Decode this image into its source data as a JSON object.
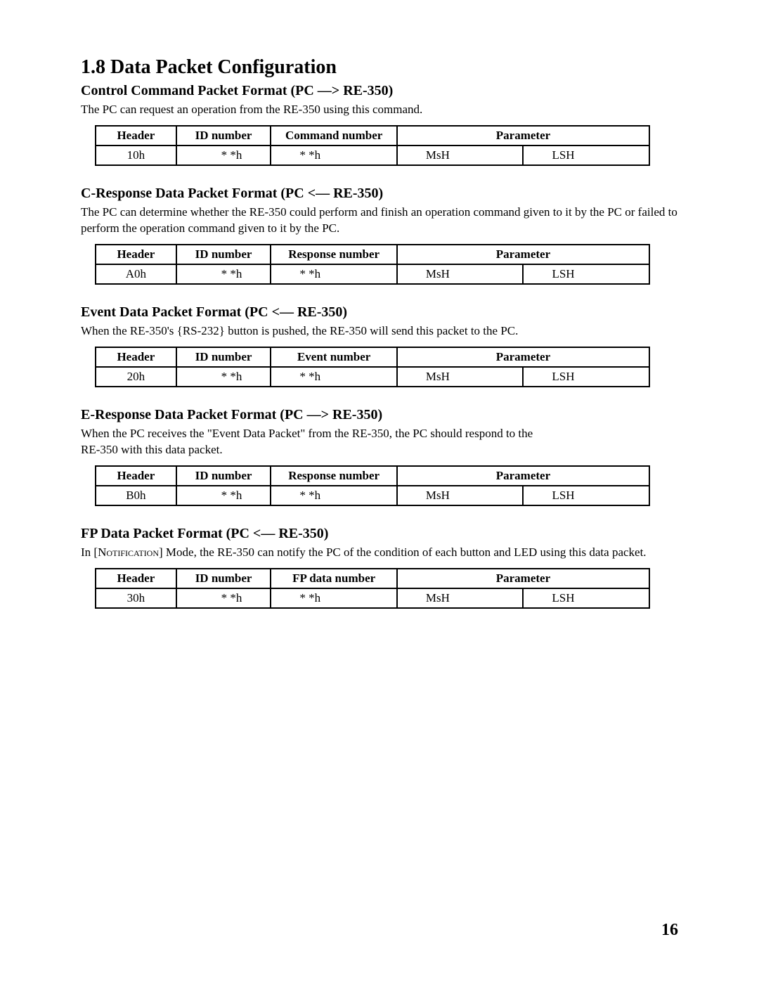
{
  "page": {
    "title": "1.8 Data Packet Configuration",
    "page_number": "16"
  },
  "sections": [
    {
      "title": "Control Command Packet Format (PC —> RE-350)",
      "desc": "The PC can request an operation from the RE-350 using this command.",
      "table": {
        "headers": [
          "Header",
          "ID number",
          "Command number",
          "Parameter"
        ],
        "row": {
          "header_val": "10h",
          "id_val": "* *h",
          "num_val": "* *h",
          "msh": "MsH",
          "lsh": "LSH"
        }
      }
    },
    {
      "title": "C-Response Data Packet Format (PC <— RE-350)",
      "desc": "The PC can determine whether the RE-350 could perform and finish an operation command given to it by the PC or failed to perform the operation command given to it by the PC.",
      "table": {
        "headers": [
          "Header",
          "ID number",
          "Response number",
          "Parameter"
        ],
        "row": {
          "header_val": "A0h",
          "id_val": "* *h",
          "num_val": "* *h",
          "msh": "MsH",
          "lsh": "LSH"
        }
      }
    },
    {
      "title": "Event Data Packet Format (PC <— RE-350)",
      "desc": "When the RE-350's {RS-232} button is pushed, the RE-350 will send this packet to the PC.",
      "table": {
        "headers": [
          "Header",
          "ID number",
          "Event number",
          "Parameter"
        ],
        "row": {
          "header_val": "20h",
          "id_val": "* *h",
          "num_val": "* *h",
          "msh": "MsH",
          "lsh": "LSH"
        }
      }
    },
    {
      "title": "E-Response Data Packet Format (PC —> RE-350)",
      "desc_pre": "When the PC receives the \"Event Data Packet\" from the RE-350, the PC should respond to the ",
      "desc_post": "RE-350 with this data packet.",
      "table": {
        "headers": [
          "Header",
          "ID number",
          "Response number",
          "Parameter"
        ],
        "row": {
          "header_val": "B0h",
          "id_val": "* *h",
          "num_val": "* *h",
          "msh": "MsH",
          "lsh": "LSH"
        }
      }
    },
    {
      "title": "FP Data Packet Format (PC <— RE-350)",
      "desc_pre": "In [",
      "desc_sc": "Notification",
      "desc_post": "] Mode, the RE-350 can notify the PC of the condition of each button  and LED using this data packet.",
      "table": {
        "headers": [
          "Header",
          "ID number",
          "FP data number",
          "Parameter"
        ],
        "row": {
          "header_val": "30h",
          "id_val": "* *h",
          "num_val": "* *h",
          "msh": "MsH",
          "lsh": "LSH"
        }
      }
    }
  ]
}
